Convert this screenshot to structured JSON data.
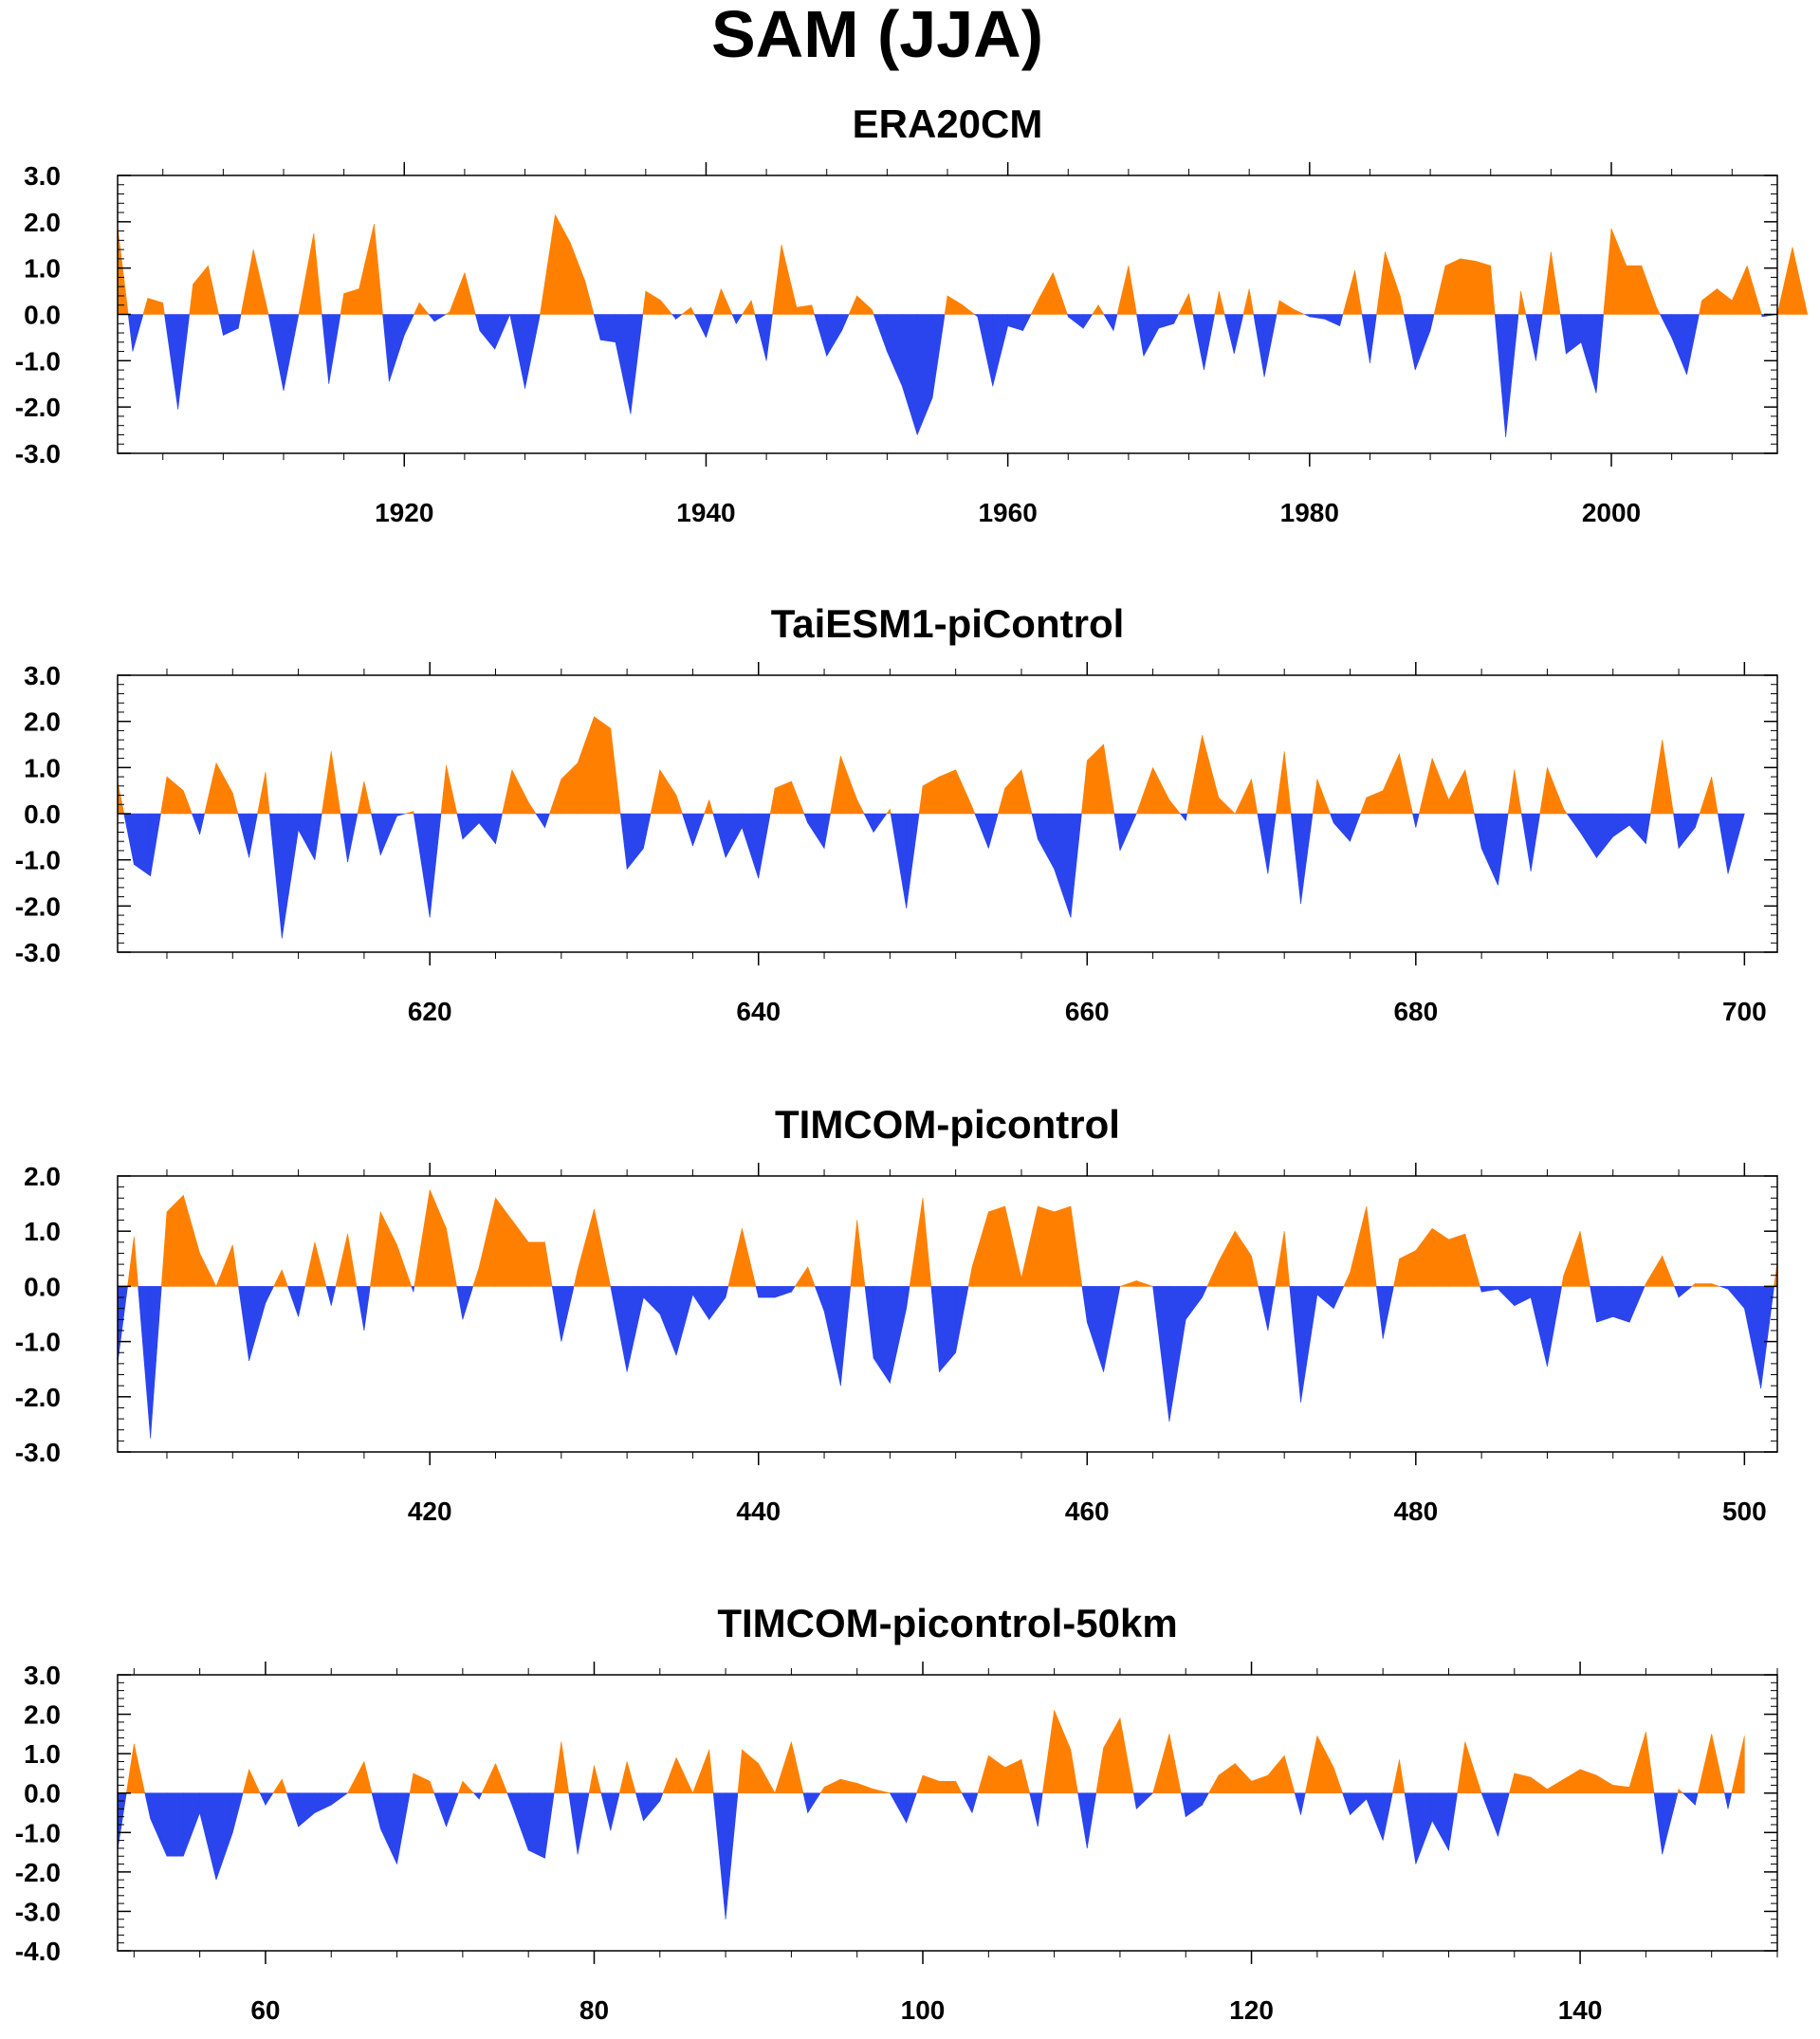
{
  "figure_title": "SAM (JJA)",
  "colors": {
    "positive": "#ff8000",
    "negative": "#2a44ee",
    "axis": "#000000"
  },
  "chart_data": [
    {
      "type": "area",
      "title": "ERA20CM",
      "xlabel": "",
      "ylabel": "",
      "xlim": [
        1901,
        2011
      ],
      "ylim": [
        -3.0,
        3.0
      ],
      "yticks": [
        -3.0,
        -2.0,
        -1.0,
        0.0,
        1.0,
        2.0,
        3.0
      ],
      "ytick_labels": [
        "-3.0",
        "-2.0",
        "-1.0",
        "0.0",
        "1.0",
        "2.0",
        "3.0"
      ],
      "xticks": [
        1920,
        1940,
        1960,
        1980,
        2000
      ],
      "xtick_labels": [
        "1920",
        "1940",
        "1960",
        "1980",
        "2000"
      ],
      "x_start": 1901,
      "values": [
        1.9,
        -0.8,
        0.35,
        0.25,
        -2.05,
        0.65,
        1.05,
        -0.45,
        -0.3,
        1.4,
        0.0,
        -1.65,
        0.0,
        1.75,
        -1.5,
        0.45,
        0.55,
        1.95,
        -1.45,
        -0.45,
        0.25,
        -0.15,
        0.05,
        0.9,
        -0.35,
        -0.75,
        0.0,
        -1.6,
        0.0,
        2.15,
        1.55,
        0.7,
        -0.55,
        -0.6,
        -2.15,
        0.5,
        0.3,
        -0.1,
        0.15,
        -0.5,
        0.55,
        -0.2,
        0.3,
        -1.0,
        1.5,
        0.15,
        0.2,
        -0.9,
        -0.35,
        0.4,
        0.1,
        -0.8,
        -1.55,
        -2.6,
        -1.8,
        0.4,
        0.2,
        -0.05,
        -1.55,
        -0.25,
        -0.35,
        0.3,
        0.9,
        -0.05,
        -0.3,
        0.2,
        -0.35,
        1.05,
        -0.9,
        -0.3,
        -0.2,
        0.45,
        -1.2,
        0.5,
        -0.85,
        0.55,
        -1.35,
        0.3,
        0.1,
        -0.05,
        -0.1,
        -0.25,
        0.95,
        -1.05,
        1.35,
        0.4,
        -1.2,
        -0.35,
        1.05,
        1.2,
        1.15,
        1.05,
        -2.65,
        0.5,
        -1.0,
        1.35,
        -0.85,
        -0.6,
        -1.7,
        1.85,
        1.05,
        1.05,
        0.15,
        -0.5,
        -1.3,
        0.3,
        0.55,
        0.3,
        1.05,
        -0.05,
        0.0,
        1.45,
        0.0
      ]
    },
    {
      "type": "area",
      "title": "TaiESM1-piControl",
      "xlabel": "",
      "ylabel": "",
      "xlim": [
        601,
        702
      ],
      "ylim": [
        -3.0,
        3.0
      ],
      "yticks": [
        -3.0,
        -2.0,
        -1.0,
        0.0,
        1.0,
        2.0,
        3.0
      ],
      "ytick_labels": [
        "-3.0",
        "-2.0",
        "-1.0",
        "0.0",
        "1.0",
        "2.0",
        "3.0"
      ],
      "xticks": [
        620,
        640,
        660,
        680,
        700
      ],
      "xtick_labels": [
        "620",
        "640",
        "660",
        "680",
        "700"
      ],
      "x_start": 601,
      "values": [
        0.7,
        -1.1,
        -1.35,
        0.8,
        0.5,
        -0.45,
        1.1,
        0.45,
        -0.95,
        0.9,
        -2.7,
        -0.35,
        -1.0,
        1.35,
        -1.05,
        0.7,
        -0.9,
        -0.05,
        0.05,
        -2.25,
        1.05,
        -0.55,
        -0.2,
        -0.65,
        0.95,
        0.25,
        -0.3,
        0.75,
        1.1,
        2.1,
        1.85,
        -1.2,
        -0.75,
        0.95,
        0.4,
        -0.7,
        0.3,
        -0.95,
        -0.3,
        -1.4,
        0.55,
        0.7,
        -0.2,
        -0.75,
        1.25,
        0.3,
        -0.4,
        0.1,
        -2.05,
        0.6,
        0.8,
        0.95,
        0.15,
        -0.75,
        0.55,
        0.95,
        -0.55,
        -1.2,
        -2.25,
        1.15,
        1.5,
        -0.8,
        0.0,
        1.0,
        0.3,
        -0.15,
        1.7,
        0.35,
        0.0,
        0.75,
        -1.3,
        1.35,
        -1.95,
        0.75,
        -0.2,
        -0.6,
        0.35,
        0.5,
        1.3,
        -0.3,
        1.2,
        0.3,
        0.95,
        -0.75,
        -1.55,
        0.95,
        -1.25,
        1.0,
        0.1,
        -0.4,
        -0.95,
        -0.5,
        -0.25,
        -0.65,
        1.6,
        -0.75,
        -0.3,
        0.8,
        -1.3,
        0.0
      ]
    },
    {
      "type": "area",
      "title": "TIMCOM-picontrol",
      "xlabel": "",
      "ylabel": "",
      "xlim": [
        401,
        502
      ],
      "ylim": [
        -3.0,
        2.0
      ],
      "yticks": [
        -3.0,
        -2.0,
        -1.0,
        0.0,
        1.0,
        2.0
      ],
      "ytick_labels": [
        "-3.0",
        "-2.0",
        "-1.0",
        "0.0",
        "1.0",
        "2.0"
      ],
      "xticks": [
        420,
        440,
        460,
        480,
        500
      ],
      "xtick_labels": [
        "420",
        "440",
        "460",
        "480",
        "500"
      ],
      "x_start": 401,
      "values": [
        -1.4,
        0.9,
        -2.75,
        1.35,
        1.65,
        0.6,
        0.0,
        0.75,
        -1.35,
        -0.3,
        0.3,
        -0.55,
        0.8,
        -0.35,
        0.95,
        -0.8,
        1.35,
        0.75,
        -0.1,
        1.75,
        1.05,
        -0.6,
        0.35,
        1.6,
        1.2,
        0.8,
        0.8,
        -1.0,
        0.3,
        1.4,
        0.0,
        -1.55,
        -0.2,
        -0.5,
        -1.25,
        -0.15,
        -0.6,
        -0.2,
        1.05,
        -0.2,
        -0.2,
        -0.1,
        0.35,
        -0.45,
        -1.8,
        1.2,
        -1.3,
        -1.75,
        -0.4,
        1.6,
        -1.55,
        -1.2,
        0.35,
        1.35,
        1.45,
        0.15,
        1.45,
        1.35,
        1.45,
        -0.65,
        -1.55,
        0.0,
        0.1,
        0.0,
        -2.45,
        -0.6,
        -0.2,
        0.45,
        1.0,
        0.55,
        -0.8,
        1.0,
        -2.1,
        -0.15,
        -0.4,
        0.25,
        1.45,
        -0.95,
        0.5,
        0.65,
        1.05,
        0.85,
        0.95,
        -0.1,
        -0.05,
        -0.35,
        -0.2,
        -1.45,
        0.2,
        1.0,
        -0.65,
        -0.55,
        -0.65,
        0.05,
        0.55,
        -0.2,
        0.05,
        0.05,
        -0.05,
        -0.4,
        -1.85,
        0.45
      ]
    },
    {
      "type": "area",
      "title": "TIMCOM-picontrol-50km",
      "xlabel": "",
      "ylabel": "",
      "xlim": [
        51,
        152
      ],
      "ylim": [
        -4.0,
        3.0
      ],
      "yticks": [
        -4.0,
        -3.0,
        -2.0,
        -1.0,
        0.0,
        1.0,
        2.0,
        3.0
      ],
      "ytick_labels": [
        "-4.0",
        "-3.0",
        "-2.0",
        "-1.0",
        "0.0",
        "1.0",
        "2.0",
        "3.0"
      ],
      "xticks": [
        60,
        80,
        100,
        120,
        140
      ],
      "xtick_labels": [
        "60",
        "80",
        "100",
        "120",
        "140"
      ],
      "x_start": 51,
      "values": [
        -1.45,
        1.25,
        -0.65,
        -1.6,
        -1.6,
        -0.5,
        -2.2,
        -1.0,
        0.6,
        -0.3,
        0.35,
        -0.85,
        -0.5,
        -0.3,
        0.0,
        0.8,
        -0.9,
        -1.8,
        0.5,
        0.3,
        -0.85,
        0.3,
        -0.15,
        0.75,
        -0.3,
        -1.45,
        -1.65,
        1.3,
        -1.55,
        0.7,
        -0.95,
        0.8,
        -0.7,
        -0.2,
        0.9,
        0.0,
        1.1,
        -3.2,
        1.1,
        0.75,
        0.0,
        1.3,
        -0.5,
        0.15,
        0.35,
        0.25,
        0.1,
        0.0,
        -0.75,
        0.45,
        0.3,
        0.3,
        -0.5,
        0.95,
        0.65,
        0.85,
        -0.85,
        2.1,
        1.1,
        -1.4,
        1.15,
        1.9,
        -0.4,
        0.0,
        1.5,
        -0.6,
        -0.3,
        0.45,
        0.75,
        0.3,
        0.45,
        0.95,
        -0.55,
        1.45,
        0.65,
        -0.55,
        -0.15,
        -1.2,
        0.85,
        -1.8,
        -0.7,
        -1.45,
        1.3,
        0.0,
        -1.1,
        0.5,
        0.4,
        0.1,
        0.35,
        0.6,
        0.45,
        0.2,
        0.15,
        1.55,
        -1.55,
        0.1,
        -0.3,
        1.5,
        -0.4,
        1.45
      ]
    }
  ]
}
